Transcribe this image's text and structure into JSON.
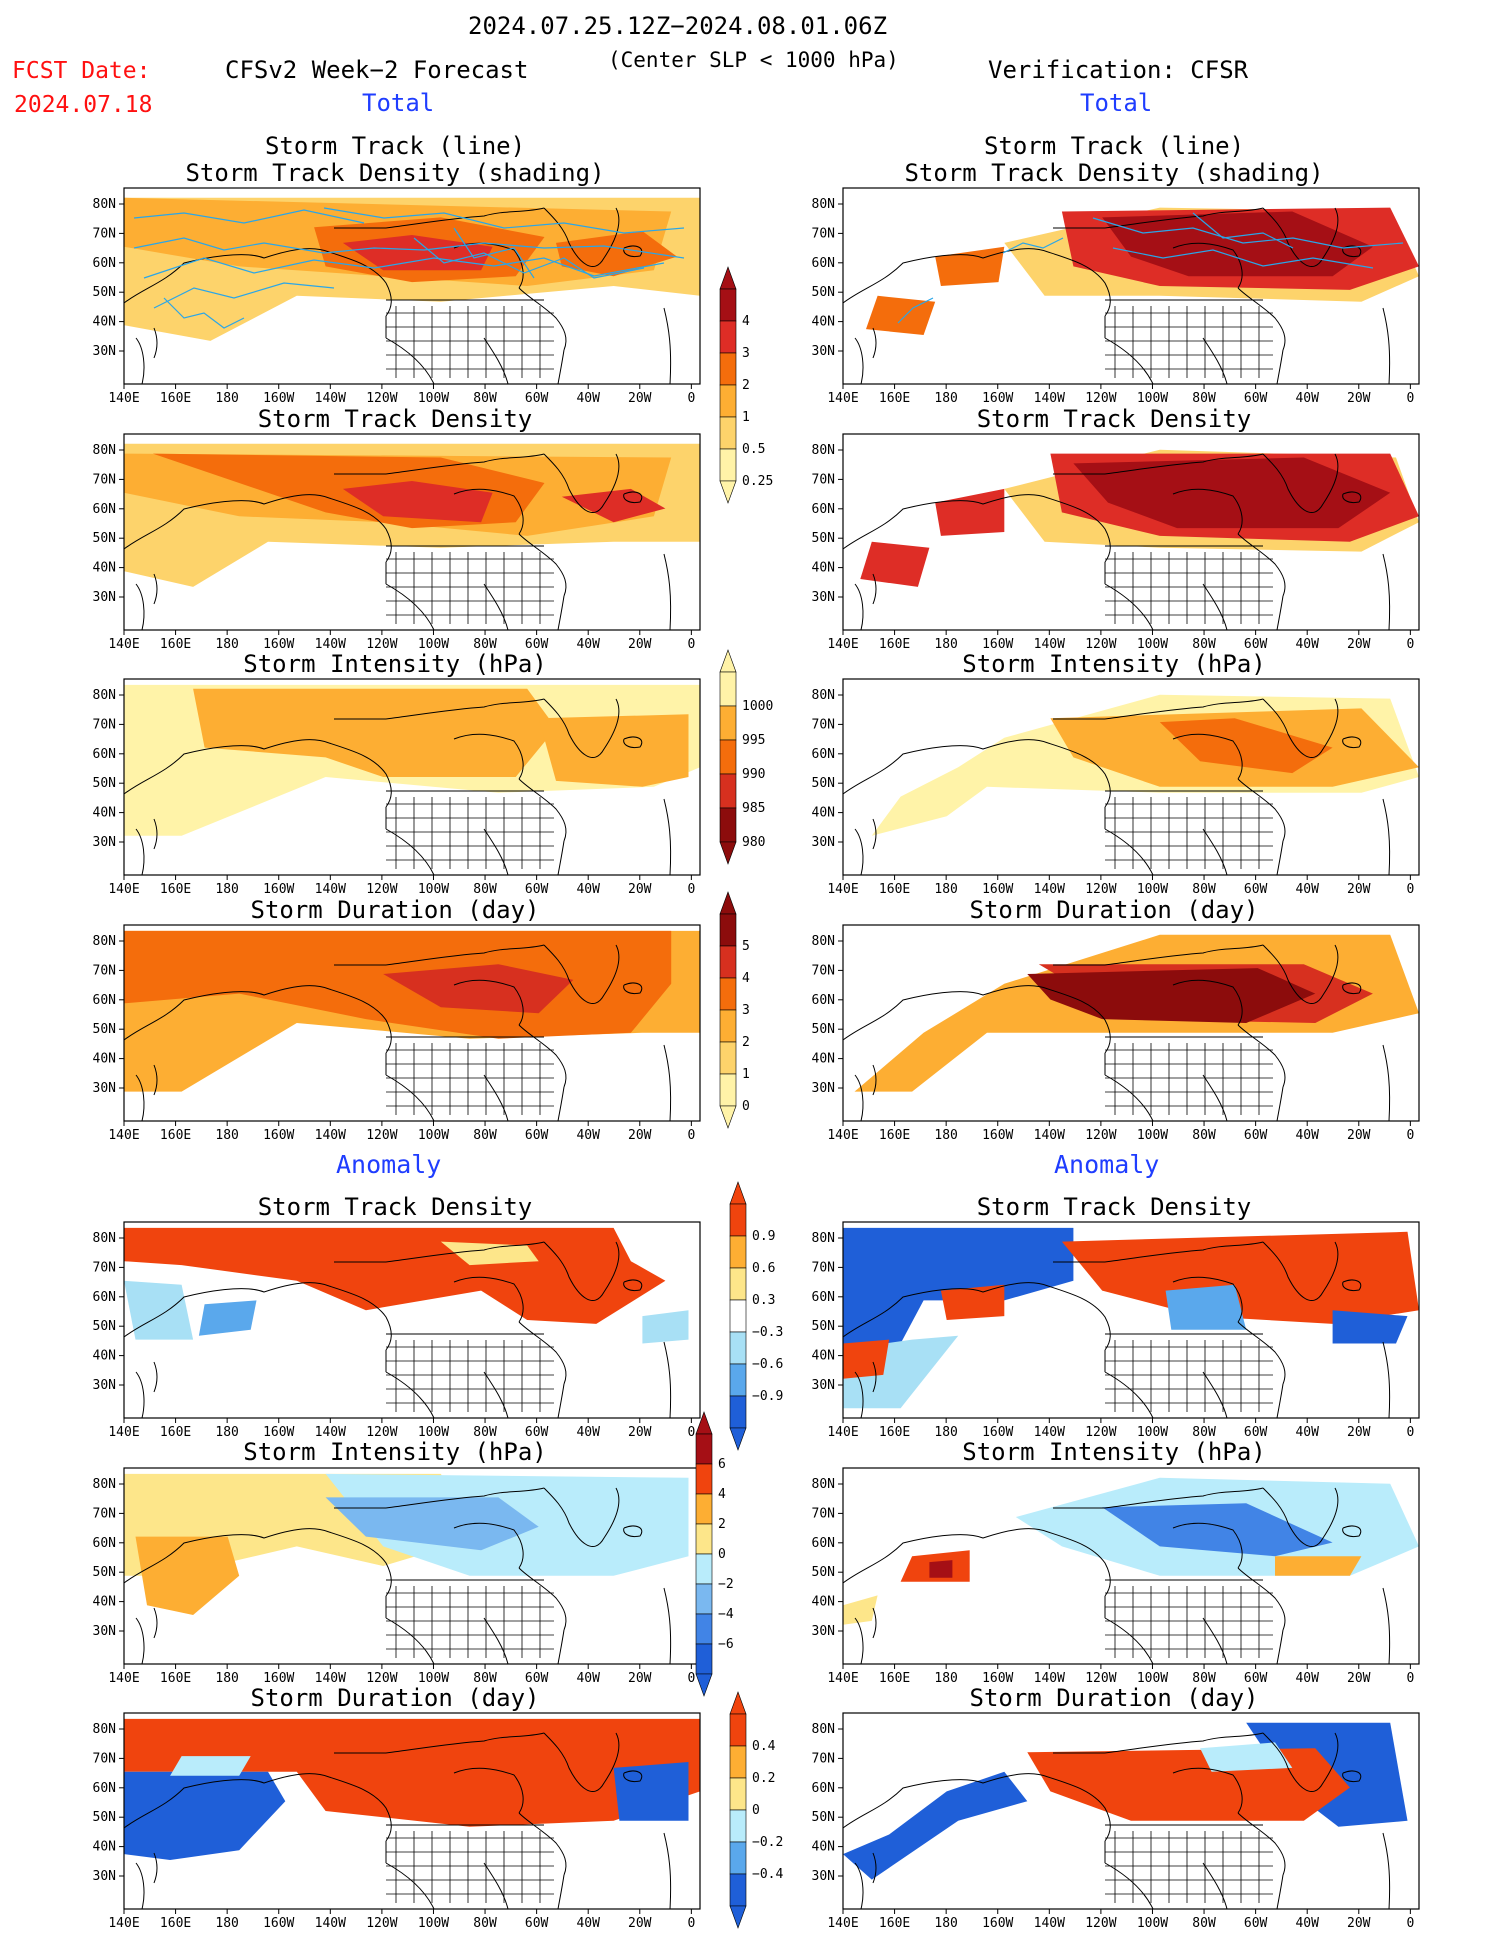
{
  "header": {
    "period": "2024.07.25.12Z−2024.08.01.06Z",
    "criterion": "(Center SLP < 1000 hPa)",
    "fcst_label": "FCST Date:",
    "fcst_date": "2024.07.18",
    "left_title": "CFSv2 Week−2 Forecast",
    "right_title": "Verification: CFSR",
    "total_label": "Total",
    "anomaly_label": "Anomaly"
  },
  "panel_titles": {
    "track_line": "Storm Track (line)",
    "track_shading": "Storm Track Density (shading)",
    "density": "Storm Track Density",
    "intensity": "Storm Intensity (hPa)",
    "duration": "Storm Duration (day)"
  },
  "axes": {
    "lon_ticks": [
      "140E",
      "160E",
      "180",
      "160W",
      "140W",
      "120W",
      "100W",
      "80W",
      "60W",
      "40W",
      "20W",
      "0"
    ],
    "lat_ticks": [
      "80N",
      "70N",
      "60N",
      "50N",
      "40N",
      "30N"
    ]
  },
  "colorbars": {
    "density": {
      "labels": [
        "4",
        "3",
        "2",
        "1",
        "0.5",
        "0.25"
      ],
      "colors": [
        "#a50f15",
        "#de2d26",
        "#f46d0c",
        "#fdae33",
        "#fdd36b",
        "#fff3a8"
      ]
    },
    "intensity": {
      "labels": [
        "1000",
        "995",
        "990",
        "985",
        "980"
      ],
      "colors": [
        "#fff3a8",
        "#fdae33",
        "#f46d0c",
        "#d7301f",
        "#8c0c0c"
      ]
    },
    "duration": {
      "labels": [
        "5",
        "4",
        "3",
        "2",
        "1",
        "0"
      ],
      "colors": [
        "#8c0c0c",
        "#d7301f",
        "#f46d0c",
        "#fdae33",
        "#fdd36b",
        "#fff3a8"
      ]
    },
    "anom_density": {
      "labels": [
        "0.9",
        "0.6",
        "0.3",
        "−0.3",
        "−0.6",
        "−0.9"
      ],
      "colors": [
        "#f0440e",
        "#fdae33",
        "#fde68a",
        "#ffffff",
        "#a8e0f5",
        "#5aa8ec",
        "#1f5fd8"
      ]
    },
    "anom_intensity": {
      "labels": [
        "6",
        "4",
        "2",
        "0",
        "−2",
        "−4",
        "−6"
      ],
      "colors": [
        "#a50f15",
        "#f0440e",
        "#fdae33",
        "#fde68a",
        "#b9ecfb",
        "#7ab8f0",
        "#4184e6",
        "#1f5fd8"
      ]
    },
    "anom_duration": {
      "labels": [
        "0.4",
        "0.2",
        "0",
        "−0.2",
        "−0.4"
      ],
      "colors": [
        "#f0440e",
        "#fdae33",
        "#fde68a",
        "#b9ecfb",
        "#5aa8ec",
        "#1f5fd8"
      ]
    }
  },
  "colors": {
    "track_line": "#2aa6e8",
    "coast": "#000000"
  }
}
